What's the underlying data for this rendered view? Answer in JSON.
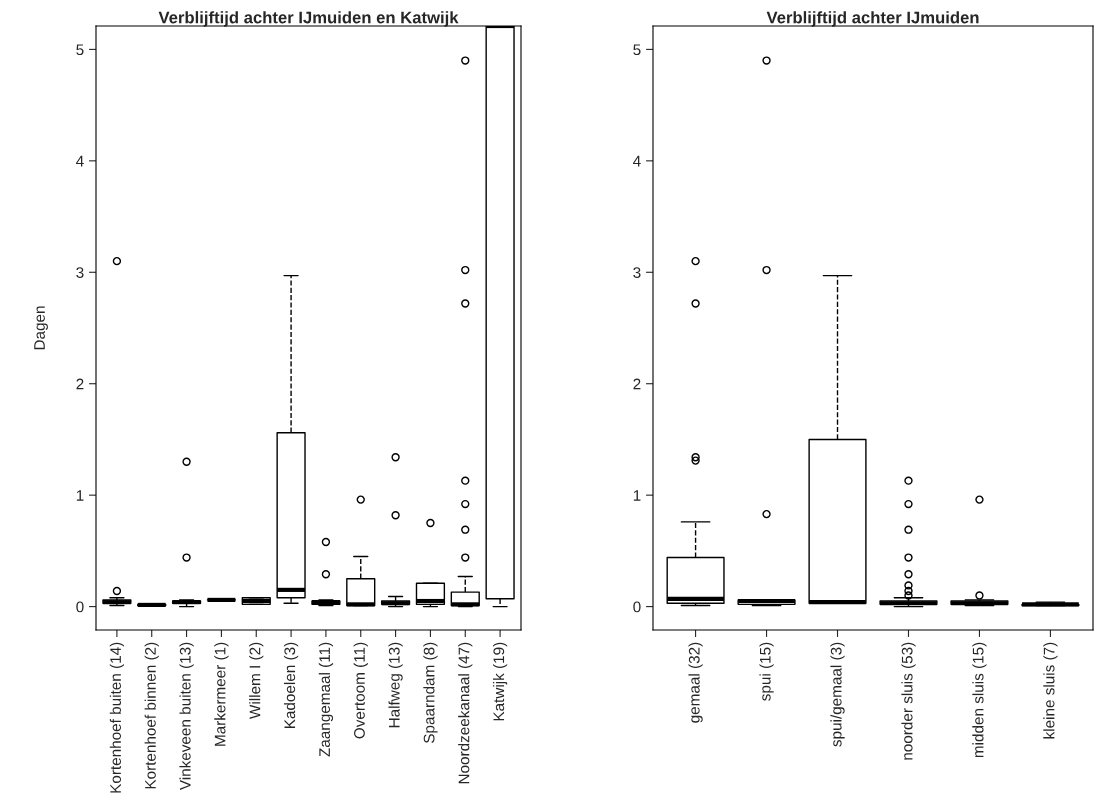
{
  "chart_data": [
    {
      "type": "box",
      "title": "Verblijftijd achter IJmuiden en Katwijk",
      "ylabel": "Dagen",
      "ylim": [
        -0.21,
        5.21
      ],
      "yticks": [
        0,
        1,
        2,
        3,
        4,
        5
      ],
      "grid": false,
      "categories": [
        "Kortenhoef buiten (14)",
        "Kortenhoef binnen (2)",
        "Vinkeveen buiten (13)",
        "Markermeer (1)",
        "Willem I (2)",
        "Kadoelen (3)",
        "Zaangemaal (11)",
        "Overtoom (11)",
        "Halfweg (13)",
        "Spaarndam (8)",
        "Noordzeekanaal (47)",
        "Katwijk (19)"
      ],
      "boxes": [
        {
          "low": 0.01,
          "q1": 0.03,
          "median": 0.04,
          "q3": 0.06,
          "high": 0.08,
          "outliers": [
            0.14,
            3.1
          ]
        },
        {
          "low": 0.01,
          "q1": 0.01,
          "median": 0.015,
          "q3": 0.02,
          "high": 0.02
        },
        {
          "low": 0.0,
          "q1": 0.03,
          "median": 0.04,
          "q3": 0.05,
          "high": 0.06,
          "outliers": [
            0.44,
            1.3
          ]
        },
        {
          "low": 0.06,
          "q1": 0.06,
          "median": 0.06,
          "q3": 0.06,
          "high": 0.06
        },
        {
          "low": 0.02,
          "q1": 0.02,
          "median": 0.05,
          "q3": 0.08,
          "high": 0.08
        },
        {
          "low": 0.03,
          "q1": 0.08,
          "median": 0.15,
          "q3": 1.56,
          "high": 2.97
        },
        {
          "low": 0.01,
          "q1": 0.02,
          "median": 0.04,
          "q3": 0.05,
          "high": 0.06,
          "outliers": [
            0.29,
            0.58
          ]
        },
        {
          "low": 0.01,
          "q1": 0.01,
          "median": 0.02,
          "q3": 0.25,
          "high": 0.45,
          "outliers": [
            0.96
          ]
        },
        {
          "low": 0.0,
          "q1": 0.02,
          "median": 0.03,
          "q3": 0.05,
          "high": 0.09,
          "outliers": [
            0.82,
            1.34
          ]
        },
        {
          "low": 0.0,
          "q1": 0.02,
          "median": 0.05,
          "q3": 0.21,
          "high": 0.21,
          "outliers": [
            0.75
          ]
        },
        {
          "low": 0.0,
          "q1": 0.01,
          "median": 0.02,
          "q3": 0.13,
          "high": 0.27,
          "outliers": [
            0.44,
            0.69,
            0.92,
            1.13,
            2.72,
            3.02,
            4.9
          ]
        },
        {
          "low": 0.0,
          "q1": 0.07,
          "median": 5.21,
          "q3": 5.21,
          "high": 5.21
        }
      ]
    },
    {
      "type": "box",
      "title": "Verblijftijd achter IJmuiden",
      "ylim": [
        -0.21,
        5.21
      ],
      "yticks": [
        0,
        1,
        2,
        3,
        4,
        5
      ],
      "grid": false,
      "categories": [
        "gemaal (32)",
        "spui (15)",
        "spui/gemaal (3)",
        "noorder sluis (53)",
        "midden sluis (15)",
        "kleine sluis (7)"
      ],
      "boxes": [
        {
          "low": 0.01,
          "q1": 0.03,
          "median": 0.07,
          "q3": 0.44,
          "high": 0.76,
          "outliers": [
            1.31,
            1.34,
            2.72,
            3.1
          ]
        },
        {
          "low": 0.01,
          "q1": 0.02,
          "median": 0.05,
          "q3": 0.06,
          "high": 0.06,
          "outliers": [
            0.83,
            3.02,
            4.9
          ]
        },
        {
          "low": 0.03,
          "q1": 0.03,
          "median": 0.04,
          "q3": 1.5,
          "high": 2.97
        },
        {
          "low": 0.0,
          "q1": 0.02,
          "median": 0.03,
          "q3": 0.05,
          "high": 0.08,
          "outliers": [
            0.1,
            0.14,
            0.19,
            0.29,
            0.44,
            0.69,
            0.92,
            1.13
          ]
        },
        {
          "low": 0.01,
          "q1": 0.02,
          "median": 0.03,
          "q3": 0.05,
          "high": 0.06,
          "outliers": [
            0.1,
            0.96
          ]
        },
        {
          "low": 0.01,
          "q1": 0.01,
          "median": 0.02,
          "q3": 0.02,
          "high": 0.04
        }
      ]
    }
  ]
}
